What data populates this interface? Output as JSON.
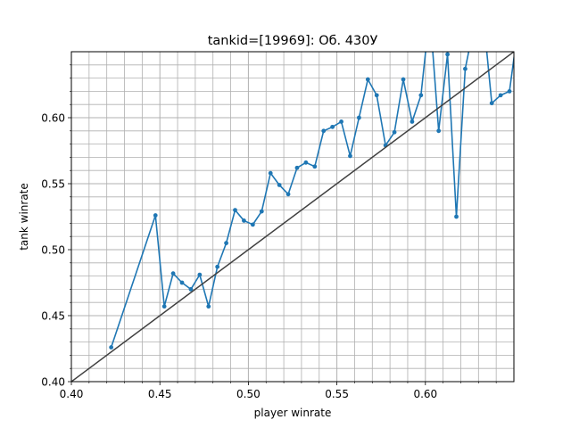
{
  "chart_data": {
    "type": "line",
    "title": "tankid=[19969]: Об. 430У",
    "xlabel": "player winrate",
    "ylabel": "tank winrate",
    "xlim": [
      0.4,
      0.65
    ],
    "ylim": [
      0.4,
      0.65
    ],
    "grid": true,
    "minor_grid": true,
    "x_ticks": [
      0.4,
      0.45,
      0.5,
      0.55,
      0.6
    ],
    "x_tick_labels": [
      "0.40",
      "0.45",
      "0.50",
      "0.55",
      "0.60"
    ],
    "y_ticks": [
      0.4,
      0.45,
      0.5,
      0.55,
      0.6
    ],
    "y_tick_labels": [
      "0.40",
      "0.45",
      "0.50",
      "0.55",
      "0.60"
    ],
    "series": [
      {
        "color": "#1f77b4",
        "marker": "circle",
        "x": [
          0.4225,
          0.4475,
          0.4525,
          0.4575,
          0.4625,
          0.4675,
          0.4725,
          0.4775,
          0.4825,
          0.4875,
          0.4925,
          0.4975,
          0.5025,
          0.5075,
          0.5125,
          0.5175,
          0.5225,
          0.5275,
          0.5325,
          0.5375,
          0.5425,
          0.5475,
          0.5525,
          0.5575,
          0.5625,
          0.5675,
          0.5725,
          0.5775,
          0.5825,
          0.5875,
          0.5925,
          0.5975,
          0.6025,
          0.6075,
          0.6125,
          0.6175,
          0.6225,
          0.6275,
          0.6325,
          0.6375,
          0.6425,
          0.6475,
          0.6525
        ],
        "y": [
          0.426,
          0.526,
          0.457,
          0.482,
          0.475,
          0.47,
          0.481,
          0.457,
          0.487,
          0.505,
          0.53,
          0.522,
          0.519,
          0.529,
          0.558,
          0.549,
          0.542,
          0.562,
          0.566,
          0.563,
          0.59,
          0.593,
          0.597,
          0.571,
          0.6,
          0.629,
          0.617,
          0.579,
          0.589,
          0.629,
          0.597,
          0.617,
          0.68,
          0.59,
          0.648,
          0.525,
          0.637,
          0.67,
          0.68,
          0.611,
          0.617,
          0.62,
          0.67
        ]
      },
      {
        "color": "#404040",
        "marker": "none",
        "x": [
          0.4,
          0.65
        ],
        "y": [
          0.4,
          0.65
        ]
      }
    ]
  }
}
